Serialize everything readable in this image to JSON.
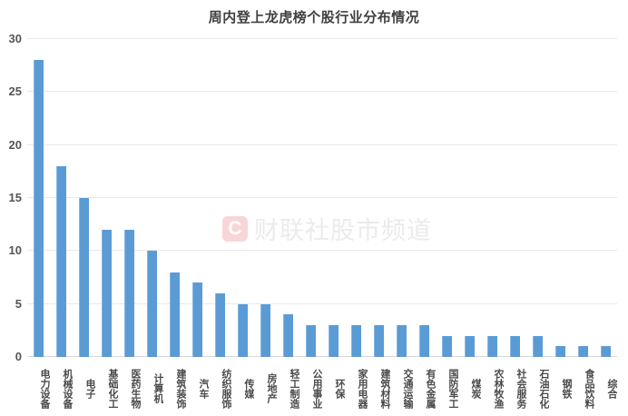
{
  "title": "周内登上龙虎榜个股行业分布情况",
  "watermark": {
    "logo_letter": "C",
    "text": "财联社股市频道",
    "logo_color": "#f8d6d6",
    "text_color": "#ebebeb"
  },
  "colors": {
    "bar": "#5b9bd5",
    "gridline": "#e9e9e9",
    "axis_line": "#d9d9d9",
    "axis_text": "#4a4a4a",
    "title_text": "#404040"
  },
  "chart_data": {
    "type": "bar",
    "title": "周内登上龙虎榜个股行业分布情况",
    "categories": [
      "电力设备",
      "机械设备",
      "电子",
      "基础化工",
      "医药生物",
      "计算机",
      "建筑装饰",
      "汽车",
      "纺织服饰",
      "传媒",
      "房地产",
      "轻工制造",
      "公用事业",
      "环保",
      "家用电器",
      "建筑材料",
      "交通运输",
      "有色金属",
      "国防军工",
      "煤炭",
      "农林牧渔",
      "社会服务",
      "石油石化",
      "钢铁",
      "食品饮料",
      "综合"
    ],
    "values": [
      28,
      18,
      15,
      12,
      12,
      10,
      8,
      7,
      6,
      5,
      5,
      4,
      3,
      3,
      3,
      3,
      3,
      3,
      2,
      2,
      2,
      2,
      2,
      1,
      1,
      1
    ],
    "xlabel": "",
    "ylabel": "",
    "ylim": [
      0,
      30
    ],
    "yticks": [
      0,
      5,
      10,
      15,
      20,
      25,
      30
    ],
    "grid": true,
    "legend": false,
    "x_label_orientation": "vertical"
  }
}
